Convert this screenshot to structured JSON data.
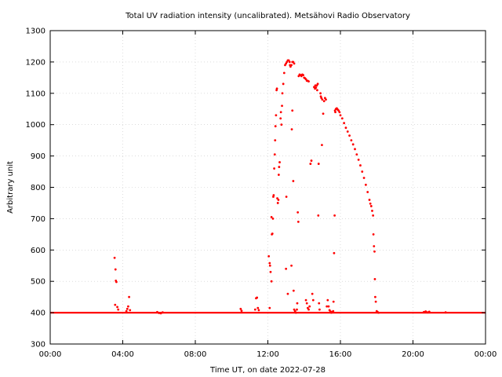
{
  "chart_data": {
    "type": "scatter",
    "title": "Total UV radiation intensity (uncalibrated). Metsähovi Radio Observatory",
    "xlabel": "Time UT, on date 2022-07-28",
    "ylabel": "Arbitrary unit",
    "xlim": [
      0,
      24
    ],
    "ylim": [
      300,
      1300
    ],
    "x_ticks": [
      {
        "value": 0,
        "label": "00:00"
      },
      {
        "value": 4,
        "label": "04:00"
      },
      {
        "value": 8,
        "label": "08:00"
      },
      {
        "value": 12,
        "label": "12:00"
      },
      {
        "value": 16,
        "label": "16:00"
      },
      {
        "value": 20,
        "label": "20:00"
      },
      {
        "value": 24,
        "label": "00:00"
      }
    ],
    "y_ticks": [
      300,
      400,
      500,
      600,
      700,
      800,
      900,
      1000,
      1100,
      1200,
      1300
    ],
    "grid": true,
    "marker_color": "#ff0000",
    "baseline_value": 400,
    "series": [
      {
        "points": [
          [
            3.55,
            575
          ],
          [
            3.6,
            538
          ],
          [
            3.62,
            502
          ],
          [
            3.65,
            498
          ],
          [
            3.58,
            425
          ],
          [
            3.7,
            418
          ],
          [
            3.75,
            410
          ],
          [
            4.25,
            412
          ],
          [
            4.3,
            420
          ],
          [
            4.35,
            450
          ],
          [
            4.4,
            408
          ],
          [
            4.2,
            405
          ],
          [
            5.9,
            402
          ],
          [
            6.0,
            399
          ],
          [
            6.1,
            398
          ],
          [
            6.2,
            401
          ],
          [
            10.5,
            412
          ],
          [
            10.55,
            406
          ],
          [
            11.3,
            410
          ],
          [
            11.35,
            446
          ],
          [
            11.4,
            448
          ],
          [
            11.45,
            415
          ],
          [
            11.5,
            408
          ],
          [
            12.05,
            580
          ],
          [
            12.1,
            558
          ],
          [
            12.12,
            550
          ],
          [
            12.15,
            530
          ],
          [
            12.2,
            500
          ],
          [
            12.1,
            415
          ],
          [
            12.2,
            705
          ],
          [
            12.22,
            650
          ],
          [
            12.25,
            652
          ],
          [
            12.28,
            700
          ],
          [
            12.3,
            770
          ],
          [
            12.32,
            775
          ],
          [
            12.35,
            860
          ],
          [
            12.38,
            905
          ],
          [
            12.4,
            950
          ],
          [
            12.42,
            995
          ],
          [
            12.45,
            1030
          ],
          [
            12.48,
            1110
          ],
          [
            12.5,
            1115
          ],
          [
            12.52,
            765
          ],
          [
            12.55,
            750
          ],
          [
            12.58,
            760
          ],
          [
            12.6,
            840
          ],
          [
            12.62,
            865
          ],
          [
            12.65,
            880
          ],
          [
            12.7,
            1020
          ],
          [
            12.72,
            1040
          ],
          [
            12.75,
            1000
          ],
          [
            12.78,
            1060
          ],
          [
            12.8,
            1100
          ],
          [
            12.85,
            1130
          ],
          [
            12.9,
            1165
          ],
          [
            12.95,
            1190
          ],
          [
            13.0,
            1195
          ],
          [
            13.02,
            770
          ],
          [
            13.05,
            1200
          ],
          [
            13.1,
            1205
          ],
          [
            13.15,
            1205
          ],
          [
            13.2,
            1200
          ],
          [
            13.22,
            1190
          ],
          [
            13.25,
            1185
          ],
          [
            13.3,
            1190
          ],
          [
            13.32,
            985
          ],
          [
            13.35,
            1200
          ],
          [
            13.4,
            1200
          ],
          [
            13.45,
            1195
          ],
          [
            13.0,
            540
          ],
          [
            13.1,
            460
          ],
          [
            13.3,
            550
          ],
          [
            13.35,
            1045
          ],
          [
            13.4,
            820
          ],
          [
            13.42,
            470
          ],
          [
            13.45,
            410
          ],
          [
            13.5,
            405
          ],
          [
            13.55,
            400
          ],
          [
            13.6,
            410
          ],
          [
            13.62,
            430
          ],
          [
            13.65,
            720
          ],
          [
            13.68,
            690
          ],
          [
            13.7,
            1155
          ],
          [
            13.75,
            1160
          ],
          [
            13.8,
            1158
          ],
          [
            13.85,
            1155
          ],
          [
            13.9,
            1160
          ],
          [
            13.95,
            1158
          ],
          [
            14.0,
            1150
          ],
          [
            14.05,
            1148
          ],
          [
            14.1,
            1145
          ],
          [
            14.15,
            1140
          ],
          [
            14.2,
            1140
          ],
          [
            14.25,
            1138
          ],
          [
            14.1,
            440
          ],
          [
            14.15,
            430
          ],
          [
            14.2,
            415
          ],
          [
            14.25,
            410
          ],
          [
            14.3,
            420
          ],
          [
            14.35,
            875
          ],
          [
            14.4,
            885
          ],
          [
            14.45,
            460
          ],
          [
            14.5,
            440
          ],
          [
            14.55,
            1120
          ],
          [
            14.6,
            1115
          ],
          [
            14.62,
            1125
          ],
          [
            14.65,
            1118
          ],
          [
            14.7,
            1125
          ],
          [
            14.72,
            1110
          ],
          [
            14.75,
            1130
          ],
          [
            14.78,
            710
          ],
          [
            14.8,
            875
          ],
          [
            14.82,
            430
          ],
          [
            14.85,
            410
          ],
          [
            14.9,
            1100
          ],
          [
            14.92,
            1090
          ],
          [
            14.95,
            1085
          ],
          [
            14.98,
            935
          ],
          [
            15.0,
            1080
          ],
          [
            15.05,
            1035
          ],
          [
            15.1,
            1075
          ],
          [
            15.15,
            1085
          ],
          [
            15.2,
            1080
          ],
          [
            15.25,
            420
          ],
          [
            15.3,
            440
          ],
          [
            15.35,
            420
          ],
          [
            15.4,
            408
          ],
          [
            15.45,
            404
          ],
          [
            15.5,
            400
          ],
          [
            15.55,
            402
          ],
          [
            15.6,
            405
          ],
          [
            15.62,
            435
          ],
          [
            15.65,
            590
          ],
          [
            15.68,
            710
          ],
          [
            15.7,
            1045
          ],
          [
            15.72,
            1040
          ],
          [
            15.75,
            1050
          ],
          [
            15.8,
            1052
          ],
          [
            15.85,
            1048
          ],
          [
            15.9,
            1045
          ],
          [
            15.95,
            1040
          ],
          [
            16.0,
            1030
          ],
          [
            16.1,
            1020
          ],
          [
            16.2,
            1005
          ],
          [
            16.3,
            990
          ],
          [
            16.4,
            978
          ],
          [
            16.5,
            965
          ],
          [
            16.6,
            950
          ],
          [
            16.7,
            937
          ],
          [
            16.8,
            922
          ],
          [
            16.9,
            905
          ],
          [
            17.0,
            888
          ],
          [
            17.1,
            870
          ],
          [
            17.2,
            850
          ],
          [
            17.3,
            830
          ],
          [
            17.4,
            808
          ],
          [
            17.5,
            785
          ],
          [
            17.6,
            760
          ],
          [
            17.65,
            748
          ],
          [
            17.7,
            740
          ],
          [
            17.75,
            725
          ],
          [
            17.8,
            710
          ],
          [
            17.82,
            650
          ],
          [
            17.85,
            612
          ],
          [
            17.88,
            595
          ],
          [
            17.9,
            507
          ],
          [
            17.92,
            450
          ],
          [
            17.95,
            435
          ],
          [
            18.0,
            405
          ],
          [
            18.05,
            402
          ],
          [
            18.1,
            400
          ],
          [
            20.6,
            402
          ],
          [
            20.7,
            404
          ],
          [
            20.8,
            401
          ],
          [
            20.9,
            403
          ],
          [
            21.8,
            401
          ]
        ]
      }
    ]
  }
}
